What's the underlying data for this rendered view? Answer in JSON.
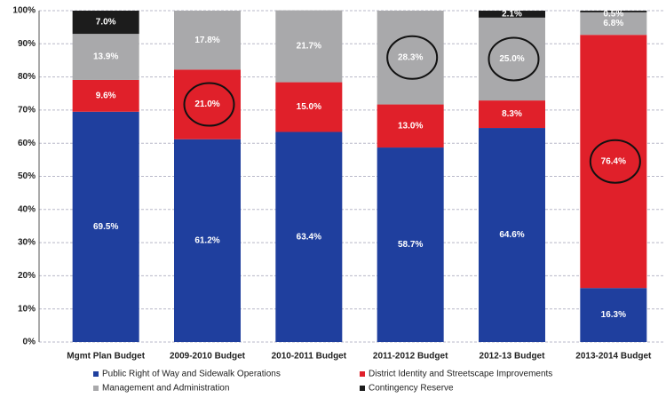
{
  "chart_data": {
    "type": "stacked_bar",
    "categories": [
      "Mgmt Plan Budget",
      "2009-2010 Budget",
      "2010-2011 Budget",
      "2011-2012 Budget",
      "2012-13 Budget",
      "2013-2014 Budget"
    ],
    "series": [
      {
        "name": "Public Right of Way and Sidewalk Operations",
        "color": "#1f3f9e",
        "values": [
          69.5,
          61.2,
          63.4,
          58.7,
          64.6,
          16.3
        ],
        "value_labels": [
          "69.5%",
          "61.2%",
          "63.4%",
          "58.7%",
          "64.6%",
          "16.3%"
        ]
      },
      {
        "name": "District Identity and Streetscape Improvements",
        "color": "#e0202a",
        "values": [
          9.6,
          21.0,
          15.0,
          13.0,
          8.3,
          76.4
        ],
        "value_labels": [
          "9.6%",
          "21.0%",
          "15.0%",
          "13.0%",
          "8.3%",
          "76.4%"
        ]
      },
      {
        "name": "Management and Administration",
        "color": "#a9a9ab",
        "values": [
          13.9,
          17.8,
          21.7,
          28.3,
          25.0,
          6.8
        ],
        "value_labels": [
          "13.9%",
          "17.8%",
          "21.7%",
          "28.3%",
          "25.0%",
          "6.8%"
        ]
      },
      {
        "name": "Contingency Reserve",
        "color": "#1c1c1c",
        "values": [
          7.0,
          null,
          null,
          null,
          2.1,
          0.5
        ],
        "value_labels": [
          "7.0%",
          null,
          null,
          null,
          "2.1%",
          "0.5%"
        ]
      }
    ],
    "ylim": [
      0,
      100
    ],
    "yticks": [
      {
        "value": 0,
        "label": "0%"
      },
      {
        "value": 10,
        "label": "10%"
      },
      {
        "value": 20,
        "label": "20%"
      },
      {
        "value": 30,
        "label": "30%"
      },
      {
        "value": 40,
        "label": "40%"
      },
      {
        "value": 50,
        "label": "50%"
      },
      {
        "value": 60,
        "label": "60%"
      },
      {
        "value": 70,
        "label": "70%"
      },
      {
        "value": 80,
        "label": "80%"
      },
      {
        "value": 90,
        "label": "90%"
      },
      {
        "value": 100,
        "label": "100%"
      }
    ],
    "grid": true
  }
}
